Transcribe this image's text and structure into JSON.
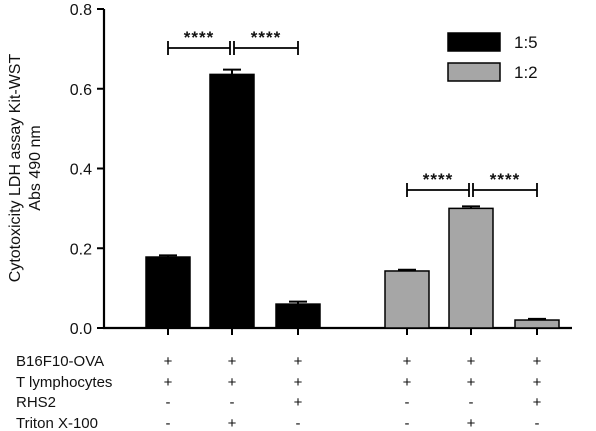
{
  "chart_data": {
    "type": "bar",
    "ylabel_line1": "Cytotoxicity LDH assay Kit-WST",
    "ylabel_line2": "Abs 490 nm",
    "ylim": [
      0,
      0.8
    ],
    "yticks": [
      "0.0",
      "0.2",
      "0.4",
      "0.6",
      "0.8"
    ],
    "ytick_values": [
      0,
      0.2,
      0.4,
      0.6,
      0.8
    ],
    "series": [
      {
        "name": "1:5",
        "color": "#000000",
        "values": [
          0.178,
          0.636,
          0.06
        ],
        "errors": [
          0.004,
          0.012,
          0.006
        ]
      },
      {
        "name": "1:2",
        "color": "#a6a6a6",
        "values": [
          0.143,
          0.3,
          0.02
        ],
        "errors": [
          0.003,
          0.005,
          0.003
        ]
      }
    ],
    "conditions": [
      {
        "label": "B16F10-OVA",
        "signs": [
          "+",
          "+",
          "+",
          "+",
          "+",
          "+"
        ]
      },
      {
        "label": "T lymphocytes",
        "signs": [
          "+",
          "+",
          "+",
          "+",
          "+",
          "+"
        ]
      },
      {
        "label": "RHS2",
        "signs": [
          "-",
          "-",
          "+",
          "-",
          "-",
          "+"
        ]
      },
      {
        "label": "Triton X-100",
        "signs": [
          "-",
          "+",
          "-",
          "-",
          "+",
          "-"
        ]
      }
    ],
    "significance": [
      {
        "series": 0,
        "from": 0,
        "to": 1,
        "label": "****"
      },
      {
        "series": 0,
        "from": 1,
        "to": 2,
        "label": "****"
      },
      {
        "series": 1,
        "from": 0,
        "to": 1,
        "label": "****"
      },
      {
        "series": 1,
        "from": 1,
        "to": 2,
        "label": "****"
      }
    ],
    "legend": "top-right",
    "grid": false
  }
}
